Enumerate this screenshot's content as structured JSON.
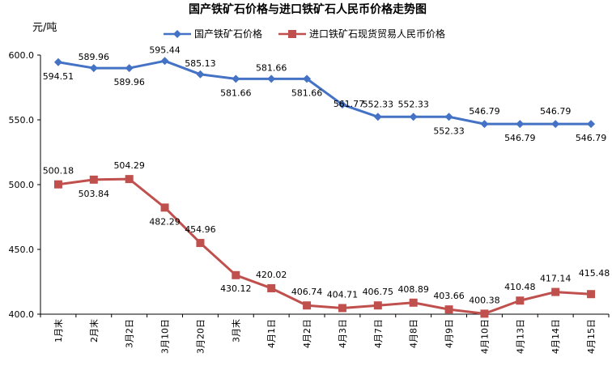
{
  "chart_data": {
    "type": "line",
    "title": "国产铁矿石价格与进口铁矿石人民币价格走势图",
    "ylabel": "元/吨",
    "xlabel": "",
    "ylim": [
      400,
      600
    ],
    "yticks": [
      "400.0",
      "450.0",
      "500.0",
      "550.0",
      "600.0"
    ],
    "categories": [
      "1月末",
      "2月末",
      "3月2日",
      "3月10日",
      "3月20日",
      "3月末",
      "4月1日",
      "4月2日",
      "4月3日",
      "4月7日",
      "4月8日",
      "4月9日",
      "4月10日",
      "4月13日",
      "4月14日",
      "4月15日"
    ],
    "series": [
      {
        "name": "国产铁矿石价格",
        "color": "#4472C4",
        "marker": "diamond",
        "values": [
          594.51,
          589.96,
          589.96,
          595.44,
          585.13,
          581.66,
          581.66,
          581.66,
          561.77,
          552.33,
          552.33,
          552.33,
          546.79,
          546.79,
          546.79,
          546.79
        ],
        "labels": [
          "594.51",
          "589.96",
          "589.96",
          "595.44",
          "585.13",
          "581.66",
          "581.66",
          "581.66",
          "561.77",
          "552.33",
          "552.33",
          "552.33",
          "546.79",
          "546.79",
          "546.79",
          "546.79"
        ]
      },
      {
        "name": "进口铁矿石现货贸易人民币价格",
        "color": "#C0504D",
        "marker": "square",
        "values": [
          500.18,
          503.84,
          504.29,
          482.29,
          454.96,
          430.12,
          420.02,
          406.74,
          404.71,
          406.75,
          408.89,
          403.66,
          400.38,
          410.48,
          417.14,
          415.48
        ],
        "labels": [
          "500.18",
          "503.84",
          "504.29",
          "482.29",
          "454.96",
          "430.12",
          "420.02",
          "406.74",
          "404.71",
          "406.75",
          "408.89",
          "403.66",
          "400.38",
          "410.48",
          "417.14",
          "415.48"
        ]
      }
    ],
    "grid": false,
    "legend": "top"
  }
}
